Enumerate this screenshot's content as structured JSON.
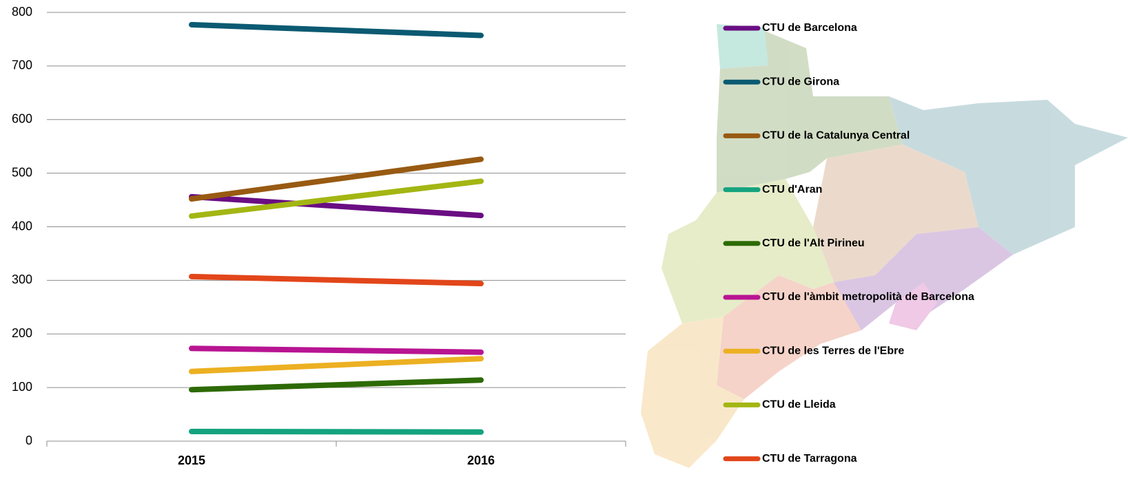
{
  "chart_data": {
    "type": "line",
    "categories": [
      "2015",
      "2016"
    ],
    "series": [
      {
        "name": "CTU de Barcelona",
        "color": "#6a0d83",
        "values": [
          456,
          421
        ]
      },
      {
        "name": "CTU de Girona",
        "color": "#0b5a72",
        "values": [
          777,
          757
        ]
      },
      {
        "name": "CTU de la Catalunya Central",
        "color": "#985a12",
        "values": [
          452,
          526
        ]
      },
      {
        "name": "CTU d'Aran",
        "color": "#14a37f",
        "values": [
          18,
          17
        ]
      },
      {
        "name": "CTU de l'Alt Pirineu",
        "color": "#2d6a05",
        "values": [
          96,
          114
        ]
      },
      {
        "name": "CTU de l'àmbit metropolità de Barcelona",
        "color": "#b81492",
        "values": [
          173,
          166
        ]
      },
      {
        "name": "CTU de les Terres de l'Ebre",
        "color": "#ecb022",
        "values": [
          130,
          154
        ]
      },
      {
        "name": "CTU de Lleida",
        "color": "#a3b613",
        "values": [
          420,
          485
        ]
      },
      {
        "name": "CTU de Tarragona",
        "color": "#e2461a",
        "values": [
          307,
          294
        ]
      }
    ],
    "ylim": [
      0,
      800
    ],
    "yticks": [
      0,
      100,
      200,
      300,
      400,
      500,
      600,
      700,
      800
    ],
    "grid": true,
    "legend": "right"
  }
}
